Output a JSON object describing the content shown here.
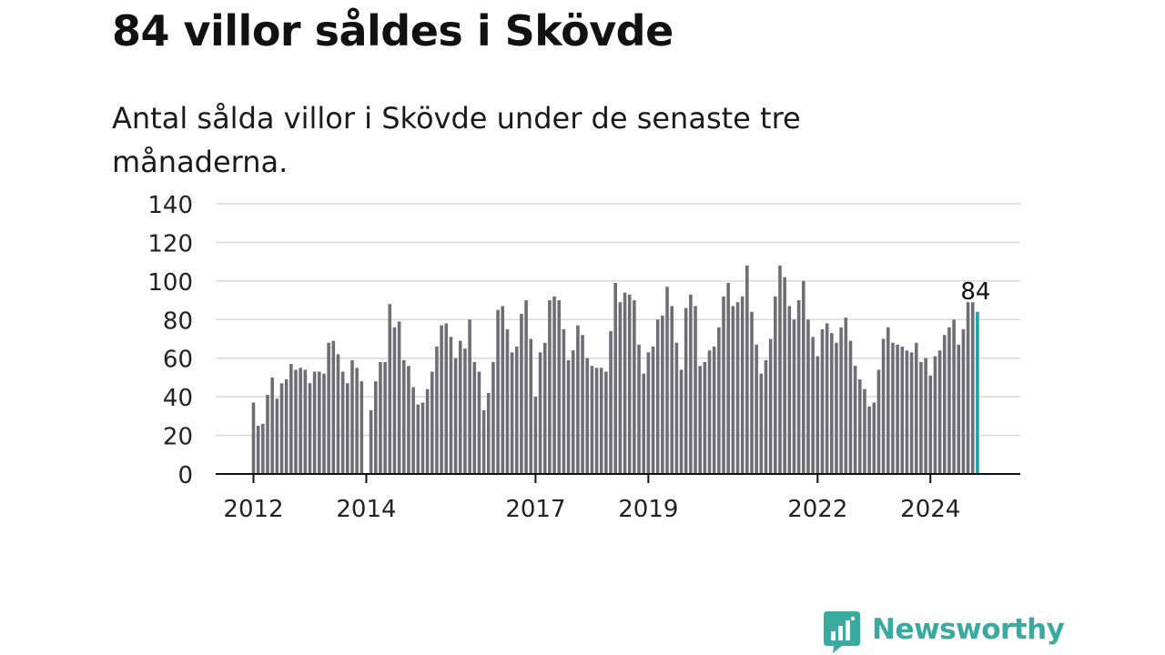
{
  "title": "84 villor såldes i Skövde",
  "subtitle": "Antal sålda villor i Skövde under de senaste tre månaderna.",
  "brand": {
    "name": "Newsworthy",
    "color": "#3aa9a0",
    "icon": "newsworthy-logo-icon"
  },
  "colors": {
    "bar": "#6f6e74",
    "highlight": "#19a3a3",
    "grid": "#d9d9d9",
    "axis": "#111111"
  },
  "chart_data": {
    "type": "bar",
    "title": "",
    "xlabel": "",
    "ylabel": "",
    "ylim": [
      0,
      140
    ],
    "yticks": [
      0,
      20,
      40,
      60,
      80,
      100,
      120,
      140
    ],
    "xticks": [
      "2012",
      "2014",
      "2017",
      "2019",
      "2022",
      "2024"
    ],
    "grid": true,
    "legend": "none",
    "last_label": "84",
    "series": [
      {
        "values": [
          37,
          25,
          26,
          41,
          50,
          39,
          47,
          49,
          57,
          54,
          55,
          54,
          47,
          53,
          53,
          52,
          68,
          69,
          62,
          53,
          47,
          59,
          55,
          48,
          null,
          33,
          48,
          58,
          58,
          88,
          76,
          79,
          59,
          56,
          45,
          36,
          37,
          44,
          53,
          66,
          77,
          78,
          71,
          60,
          69,
          65,
          80,
          58,
          53,
          33,
          42,
          58,
          85,
          87,
          75,
          63,
          66,
          83,
          90,
          70,
          40,
          63,
          68,
          90,
          92,
          90,
          75,
          59,
          64,
          77,
          72,
          60,
          56,
          55,
          55,
          53,
          74,
          99,
          89,
          94,
          93,
          90,
          67,
          52,
          63,
          66,
          80,
          82,
          97,
          87,
          68,
          54,
          86,
          93,
          87,
          56,
          58,
          64,
          66,
          76,
          92,
          99,
          87,
          89,
          92,
          108,
          84,
          67,
          52,
          59,
          70,
          92,
          108,
          102,
          87,
          80,
          90,
          100,
          80,
          71,
          61,
          75,
          78,
          73,
          68,
          76,
          81,
          69,
          56,
          49,
          44,
          35,
          37,
          54,
          70,
          76,
          68,
          67,
          66,
          64,
          63,
          68,
          58,
          60,
          51,
          61,
          64,
          72,
          76,
          80,
          67,
          75,
          89,
          89,
          84
        ]
      }
    ]
  }
}
